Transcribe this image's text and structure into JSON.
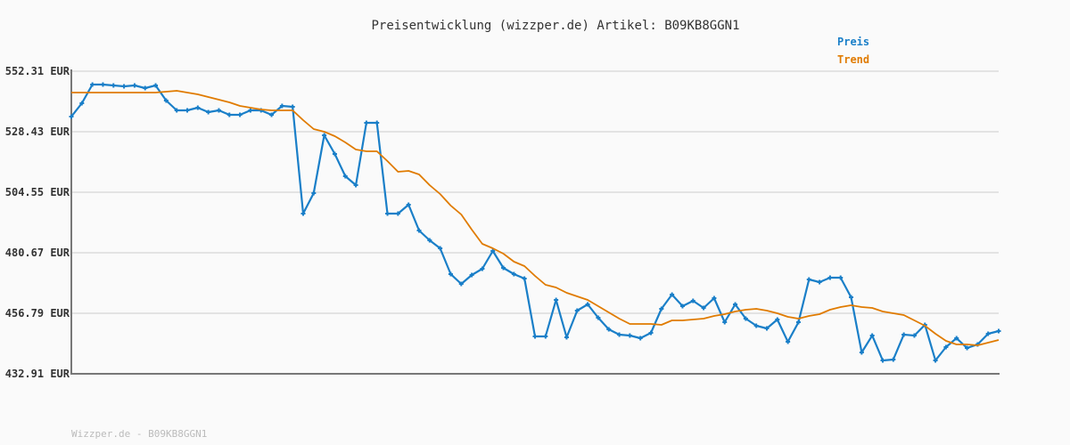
{
  "chart_data": {
    "type": "line",
    "title": "Preisentwicklung (wizzper.de) Artikel: B09KB8GGN1",
    "ylim": [
      432.91,
      552.31
    ],
    "yticks": [
      "552.31 EUR",
      "528.43 EUR",
      "504.55 EUR",
      "480.67 EUR",
      "456.79 EUR",
      "432.91 EUR"
    ],
    "ytick_values": [
      552.31,
      528.43,
      504.55,
      480.67,
      456.79,
      432.91
    ],
    "grid": true,
    "legend_placement": "top-right",
    "series": [
      {
        "name": "Preis",
        "color": "#1a7fc8",
        "markers": true,
        "values": [
          534.4,
          539.67,
          547.04,
          547.04,
          546.69,
          546.34,
          546.69,
          545.64,
          546.69,
          540.72,
          536.86,
          536.86,
          537.91,
          536.16,
          536.86,
          535.1,
          535.1,
          536.86,
          536.86,
          535.1,
          538.61,
          538.26,
          496.12,
          504.2,
          527.03,
          519.65,
          510.87,
          507.36,
          531.94,
          531.94,
          496.12,
          496.12,
          499.63,
          489.45,
          485.59,
          482.43,
          472.24,
          468.38,
          471.89,
          474.35,
          481.37,
          474.7,
          472.24,
          470.49,
          447.66,
          447.66,
          462.06,
          447.31,
          457.85,
          460.3,
          455.04,
          450.47,
          448.36,
          448.01,
          446.96,
          449.07,
          458.55,
          464.17,
          459.6,
          461.71,
          458.9,
          462.76,
          453.28,
          460.3,
          454.68,
          451.88,
          450.82,
          454.33,
          445.55,
          453.28,
          470.14,
          469.08,
          470.84,
          470.84,
          463.11,
          441.34,
          448.01,
          438.18,
          438.53,
          448.36,
          448.01,
          452.23,
          438.18,
          443.45,
          446.96,
          443.1,
          444.5,
          448.71,
          449.77
        ]
      },
      {
        "name": "Trend",
        "color": "#e07b00",
        "markers": false,
        "values": [
          543.88,
          543.88,
          543.88,
          543.88,
          543.88,
          543.88,
          543.88,
          543.88,
          543.88,
          544.23,
          544.58,
          543.88,
          543.18,
          542.13,
          541.07,
          540.02,
          538.61,
          537.91,
          537.21,
          536.86,
          536.86,
          536.86,
          533.0,
          529.48,
          528.43,
          526.67,
          524.22,
          521.41,
          520.7,
          520.7,
          516.84,
          512.63,
          512.98,
          511.57,
          507.36,
          503.85,
          499.28,
          495.77,
          489.8,
          484.18,
          482.43,
          480.32,
          477.16,
          475.4,
          471.54,
          468.03,
          466.98,
          464.87,
          463.46,
          462.06,
          459.6,
          457.14,
          454.68,
          452.58,
          452.58,
          452.58,
          452.23,
          453.98,
          453.98,
          454.33,
          454.68,
          455.74,
          456.44,
          457.49,
          458.2,
          458.55,
          457.85,
          456.79,
          455.39,
          454.68,
          455.74,
          456.44,
          458.2,
          459.25,
          459.95,
          459.25,
          458.9,
          457.49,
          456.79,
          456.09,
          453.98,
          451.88,
          448.71,
          445.91,
          444.5,
          444.5,
          444.15,
          445.2,
          446.26
        ]
      }
    ]
  },
  "footer": "Wizzper.de - B09KB8GGN1"
}
